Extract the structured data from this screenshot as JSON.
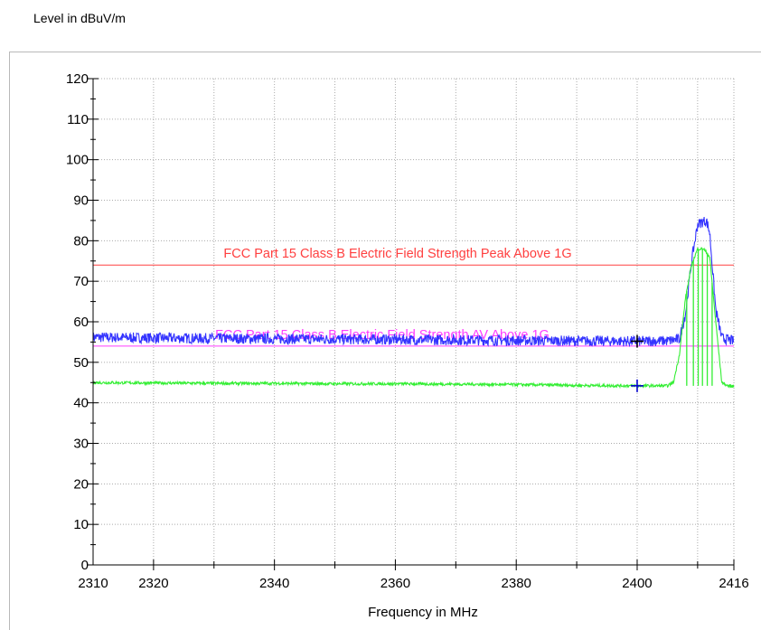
{
  "chart_data": {
    "type": "line",
    "title": "",
    "xlabel": "Frequency in MHz",
    "ylabel": "Level in dBuV/m",
    "xlim": [
      2310,
      2416
    ],
    "ylim": [
      0,
      120
    ],
    "x_ticks": [
      2310,
      2320,
      2340,
      2360,
      2380,
      2400,
      2416
    ],
    "y_ticks": [
      0,
      10,
      20,
      30,
      40,
      50,
      60,
      70,
      80,
      90,
      100,
      110,
      120
    ],
    "grid": true,
    "limit_lines": [
      {
        "name": "FCC Part 15 Class B Electric Field Strength Peak Above 1G",
        "value": 74,
        "color": "#ff4040"
      },
      {
        "name": "FCC Part 15 Class B Electric Field Strength AV Above 1G",
        "value": 54,
        "color": "#ff3cff"
      }
    ],
    "series": [
      {
        "color": "#3333ff",
        "x": [
          2310,
          2320,
          2330,
          2340,
          2350,
          2360,
          2370,
          2380,
          2390,
          2400,
          2405,
          2407,
          2408,
          2409,
          2410,
          2411,
          2411.5,
          2412,
          2413,
          2414,
          2416
        ],
        "y": [
          56.2,
          56,
          55.9,
          55.8,
          55.7,
          55.6,
          55.5,
          55.4,
          55.3,
          55.2,
          55.3,
          55.7,
          62,
          75,
          84,
          84.8,
          84.8,
          82,
          63,
          56,
          55.2
        ]
      },
      {
        "color": "#33ee33",
        "x": [
          2310,
          2320,
          2330,
          2340,
          2350,
          2360,
          2370,
          2380,
          2390,
          2400,
          2405,
          2406,
          2407,
          2408,
          2409,
          2410,
          2411,
          2412,
          2413,
          2414,
          2415,
          2416
        ],
        "y": [
          45,
          44.9,
          44.8,
          44.8,
          44.7,
          44.7,
          44.6,
          44.5,
          44.3,
          44.2,
          44.2,
          45,
          52,
          66,
          74,
          78,
          78,
          76,
          60,
          45,
          44.2,
          44
        ]
      }
    ],
    "markers": [
      {
        "x": 2400,
        "y": 55.2,
        "color": "#000000"
      },
      {
        "x": 2400,
        "y": 44.2,
        "color": "#0000cc"
      }
    ]
  }
}
